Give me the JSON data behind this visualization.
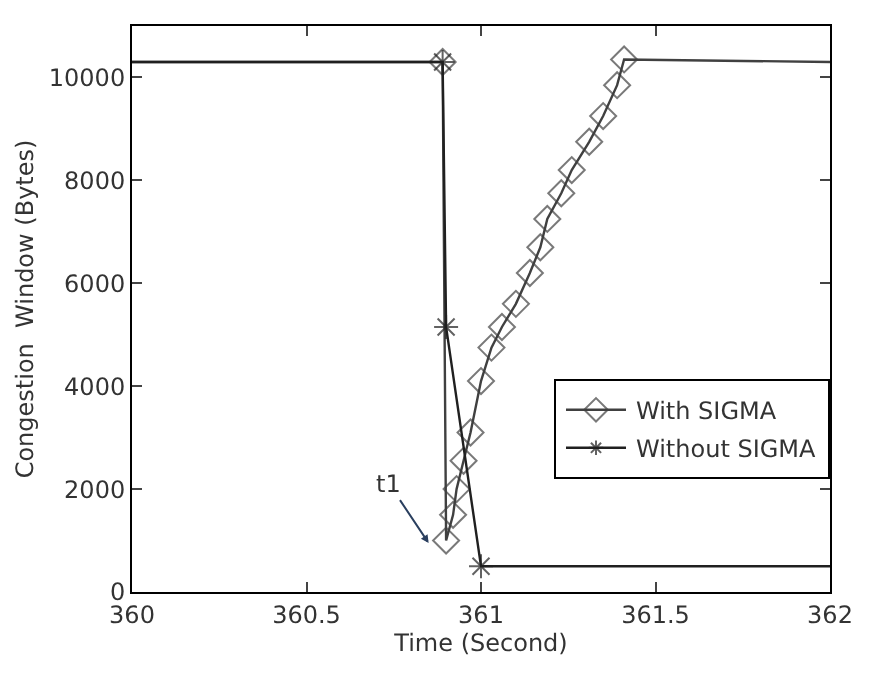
{
  "chart_data": {
    "type": "line",
    "xlabel": "Time (Second)",
    "ylabel": "Congestion  Window (Bytes)",
    "xlim": [
      360,
      362
    ],
    "xticks": [
      360,
      360.5,
      361,
      361.5,
      362
    ],
    "ylim": [
      0,
      11000
    ],
    "yticks": [
      0,
      2000,
      4000,
      6000,
      8000,
      10000
    ],
    "legend": "bottom right",
    "series": [
      {
        "name": "With SIGMA",
        "color": "#404040",
        "marker": "diamond",
        "x": [
          360,
          360.89,
          360.9,
          360.92,
          360.93,
          360.95,
          360.97,
          361.0,
          361.03,
          361.06,
          361.1,
          361.14,
          361.17,
          361.19,
          361.23,
          361.26,
          361.31,
          361.35,
          361.39,
          361.41,
          362
        ],
        "values": [
          10300,
          10300,
          1000,
          1500,
          2000,
          2550,
          3100,
          4100,
          4750,
          5150,
          5600,
          6200,
          6700,
          7250,
          7750,
          8200,
          8750,
          9250,
          9850,
          10350,
          10300
        ]
      },
      {
        "name": "Without SIGMA",
        "color": "#202020",
        "marker": "cross",
        "x": [
          360,
          360.89,
          360.9,
          361.0,
          362
        ],
        "values": [
          10300,
          10300,
          5150,
          500,
          500
        ]
      }
    ],
    "annotations": [
      {
        "text": "t1",
        "x": 360.85,
        "y": 950
      }
    ]
  }
}
